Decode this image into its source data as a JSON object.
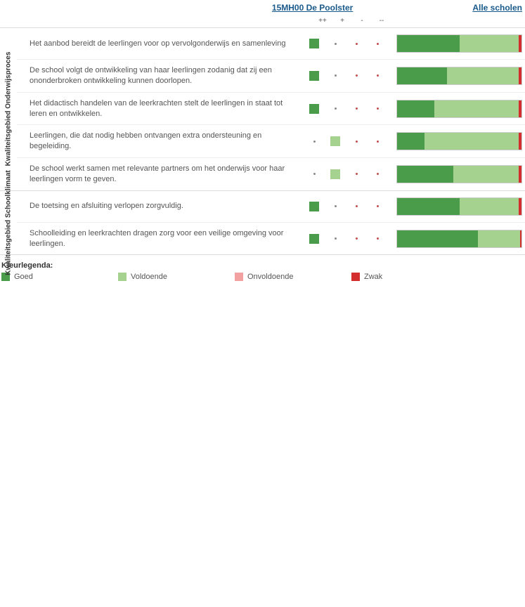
{
  "header": {
    "school_link": "15MH00 De Poolster",
    "all_schools_link": "Alle scholen"
  },
  "colors": {
    "goed": "#4a9b4a",
    "voldoende": "#a5d28f",
    "onvoldoende": "#f2a0a0",
    "zwak": "#d32f2f",
    "dot_neutral": "#888888",
    "dot_neg": "#c0504d",
    "link": "#1a5a8a"
  },
  "column_headers": [
    "++",
    "+",
    "-",
    "--"
  ],
  "groups": [
    {
      "label": "Kwaliteitsgebied Onderwijsproces",
      "rows": [
        {
          "text": "Het aanbod bereidt de leerlingen voor op vervolgonderwijs en samenleving",
          "marks": [
            {
              "kind": "square",
              "color": "#4a9b4a"
            },
            {
              "kind": "dot",
              "color": "#888888"
            },
            {
              "kind": "dot",
              "color": "#c0504d"
            },
            {
              "kind": "dot",
              "color": "#c0504d"
            }
          ],
          "bar": [
            {
              "color": "#4a9b4a",
              "pct": 50
            },
            {
              "color": "#a5d28f",
              "pct": 48
            },
            {
              "color": "#d32f2f",
              "pct": 2
            }
          ]
        },
        {
          "text": "De school volgt de ontwikkeling van haar leerlingen zodanig dat zij een ononderbroken ontwikkeling kunnen doorlopen.",
          "marks": [
            {
              "kind": "square",
              "color": "#4a9b4a"
            },
            {
              "kind": "dot",
              "color": "#888888"
            },
            {
              "kind": "dot",
              "color": "#c0504d"
            },
            {
              "kind": "dot",
              "color": "#c0504d"
            }
          ],
          "bar": [
            {
              "color": "#4a9b4a",
              "pct": 40
            },
            {
              "color": "#a5d28f",
              "pct": 58
            },
            {
              "color": "#d32f2f",
              "pct": 2
            }
          ]
        },
        {
          "text": " Het didactisch handelen van de leerkrachten stelt de leerlingen in staat tot leren en ontwikkelen.",
          "marks": [
            {
              "kind": "square",
              "color": "#4a9b4a"
            },
            {
              "kind": "dot",
              "color": "#888888"
            },
            {
              "kind": "dot",
              "color": "#c0504d"
            },
            {
              "kind": "dot",
              "color": "#c0504d"
            }
          ],
          "bar": [
            {
              "color": "#4a9b4a",
              "pct": 30
            },
            {
              "color": "#a5d28f",
              "pct": 68
            },
            {
              "color": "#d32f2f",
              "pct": 2
            }
          ]
        },
        {
          "text": "Leerlingen, die dat nodig hebben ontvangen extra ondersteuning en begeleiding.",
          "marks": [
            {
              "kind": "dot",
              "color": "#888888"
            },
            {
              "kind": "square",
              "color": "#a5d28f"
            },
            {
              "kind": "dot",
              "color": "#c0504d"
            },
            {
              "kind": "dot",
              "color": "#c0504d"
            }
          ],
          "bar": [
            {
              "color": "#4a9b4a",
              "pct": 22
            },
            {
              "color": "#a5d28f",
              "pct": 76
            },
            {
              "color": "#d32f2f",
              "pct": 2
            }
          ]
        },
        {
          "text": "De school werkt samen met relevante partners om het onderwijs voor haar leerlingen vorm te geven.",
          "marks": [
            {
              "kind": "dot",
              "color": "#888888"
            },
            {
              "kind": "square",
              "color": "#a5d28f"
            },
            {
              "kind": "dot",
              "color": "#c0504d"
            },
            {
              "kind": "dot",
              "color": "#c0504d"
            }
          ],
          "bar": [
            {
              "color": "#4a9b4a",
              "pct": 45
            },
            {
              "color": "#a5d28f",
              "pct": 53
            },
            {
              "color": "#d32f2f",
              "pct": 2
            }
          ]
        }
      ]
    },
    {
      "label": "Kwaliteitsgebied Schoolklimaat",
      "rows": [
        {
          "text": "De toetsing en afsluiting verlopen zorgvuldig.",
          "marks": [
            {
              "kind": "square",
              "color": "#4a9b4a"
            },
            {
              "kind": "dot",
              "color": "#888888"
            },
            {
              "kind": "dot",
              "color": "#c0504d"
            },
            {
              "kind": "dot",
              "color": "#c0504d"
            }
          ],
          "bar": [
            {
              "color": "#4a9b4a",
              "pct": 50
            },
            {
              "color": "#a5d28f",
              "pct": 48
            },
            {
              "color": "#d32f2f",
              "pct": 2
            }
          ]
        },
        {
          "text": "Schoolleiding en leerkrachten dragen zorg voor een veilige omgeving voor leerlingen.",
          "marks": [
            {
              "kind": "square",
              "color": "#4a9b4a"
            },
            {
              "kind": "dot",
              "color": "#888888"
            },
            {
              "kind": "dot",
              "color": "#c0504d"
            },
            {
              "kind": "dot",
              "color": "#c0504d"
            }
          ],
          "bar": [
            {
              "color": "#4a9b4a",
              "pct": 65
            },
            {
              "color": "#a5d28f",
              "pct": 34
            },
            {
              "color": "#d32f2f",
              "pct": 1
            }
          ]
        }
      ]
    }
  ],
  "legend": {
    "title": "Kleurlegenda:",
    "items": [
      {
        "label": "Goed",
        "color": "#4a9b4a"
      },
      {
        "label": "Voldoende",
        "color": "#a5d28f"
      },
      {
        "label": "Onvoldoende",
        "color": "#f2a0a0"
      },
      {
        "label": "Zwak",
        "color": "#d32f2f"
      }
    ]
  }
}
